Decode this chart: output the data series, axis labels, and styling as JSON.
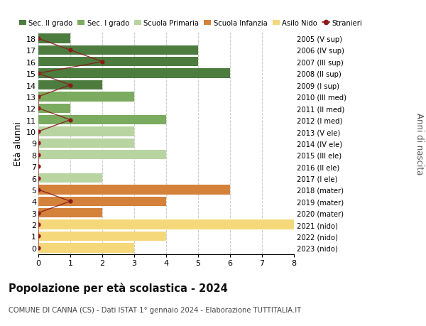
{
  "ages": [
    18,
    17,
    16,
    15,
    14,
    13,
    12,
    11,
    10,
    9,
    8,
    7,
    6,
    5,
    4,
    3,
    2,
    1,
    0
  ],
  "right_labels": [
    "2005 (V sup)",
    "2006 (IV sup)",
    "2007 (III sup)",
    "2008 (II sup)",
    "2009 (I sup)",
    "2010 (III med)",
    "2011 (II med)",
    "2012 (I med)",
    "2013 (V ele)",
    "2014 (IV ele)",
    "2015 (III ele)",
    "2016 (II ele)",
    "2017 (I ele)",
    "2018 (mater)",
    "2019 (mater)",
    "2020 (mater)",
    "2021 (nido)",
    "2022 (nido)",
    "2023 (nido)"
  ],
  "bar_values": [
    1,
    5,
    5,
    6,
    2,
    3,
    1,
    4,
    3,
    3,
    4,
    0,
    2,
    6,
    4,
    2,
    8,
    4,
    3
  ],
  "bar_colors": [
    "#4d7c3f",
    "#4d7c3f",
    "#4d7c3f",
    "#4d7c3f",
    "#4d7c3f",
    "#7aab5e",
    "#7aab5e",
    "#7aab5e",
    "#b8d4a0",
    "#b8d4a0",
    "#b8d4a0",
    "#b8d4a0",
    "#b8d4a0",
    "#d4813a",
    "#d4813a",
    "#d4813a",
    "#f5d87a",
    "#f5d87a",
    "#f5d87a"
  ],
  "stranieri_values": [
    0,
    1,
    2,
    0,
    1,
    0,
    0,
    1,
    0,
    0,
    0,
    0,
    0,
    0,
    1,
    0,
    0,
    0,
    0
  ],
  "stranieri_color": "#8b1a1a",
  "legend_items": [
    {
      "label": "Sec. II grado",
      "color": "#4d7c3f"
    },
    {
      "label": "Sec. I grado",
      "color": "#7aab5e"
    },
    {
      "label": "Scuola Primaria",
      "color": "#b8d4a0"
    },
    {
      "label": "Scuola Infanzia",
      "color": "#d4813a"
    },
    {
      "label": "Asilo Nido",
      "color": "#f5d87a"
    },
    {
      "label": "Stranieri",
      "color": "#8b1a1a"
    }
  ],
  "ylabel": "Età alunni",
  "right_ylabel": "Anni di nascita",
  "title": "Popolazione per età scolastica - 2024",
  "subtitle": "COMUNE DI CANNA (CS) - Dati ISTAT 1° gennaio 2024 - Elaborazione TUTTITALIA.IT",
  "xlim": [
    0,
    8
  ],
  "xticks": [
    0,
    1,
    2,
    3,
    4,
    5,
    6,
    7,
    8
  ],
  "background_color": "#ffffff",
  "grid_color": "#cccccc"
}
